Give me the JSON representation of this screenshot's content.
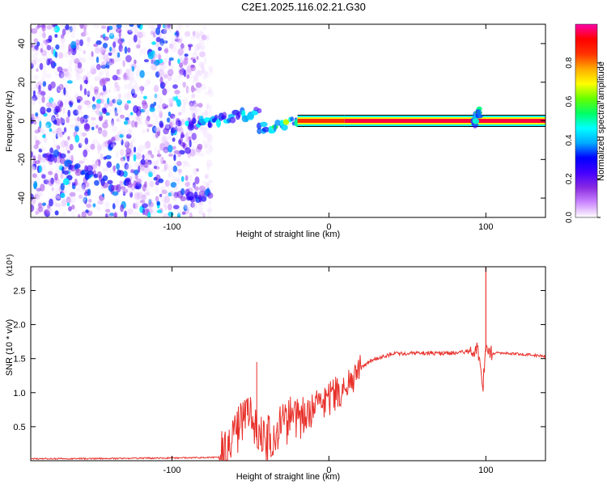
{
  "title": "C2E1.2025.116.02.21.G30",
  "chart_data": [
    {
      "type": "heatmap",
      "xlabel": "Height of straight line (km)",
      "ylabel": "Frequency (Hz)",
      "xlim": [
        -190,
        138
      ],
      "ylim": [
        -50,
        50
      ],
      "x_ticks": [
        "-100",
        "0",
        "100"
      ],
      "x_tick_values": [
        -100,
        0,
        100
      ],
      "y_ticks": [
        "40",
        "20",
        "0",
        "-20",
        "-40"
      ],
      "y_tick_values": [
        40,
        20,
        0,
        -20,
        -40
      ],
      "colorbar": {
        "label": "Normalized spectral amplitude",
        "range": [
          0,
          1
        ],
        "ticks": [
          "0.0",
          "0.2",
          "0.4",
          "0.6",
          "0.8"
        ],
        "tick_values": [
          0,
          0.2,
          0.4,
          0.6,
          0.8
        ],
        "colors": [
          "#ffffff",
          "#cc88ff",
          "#8a2be2",
          "#4400ff",
          "#0000ff",
          "#00aaff",
          "#00ffff",
          "#00ff66",
          "#66ff00",
          "#ffff00",
          "#ffaa00",
          "#ff3300",
          "#ff0000",
          "#ff00aa"
        ]
      },
      "features": [
        {
          "x": [
            -190,
            -75
          ],
          "y": [
            -50,
            50
          ],
          "value": 0.15
        },
        {
          "x": [
            -180,
            -135
          ],
          "y": [
            -16,
            -34
          ],
          "value": 0.3
        },
        {
          "x": [
            -95,
            -75
          ],
          "y": [
            -39,
            -38
          ],
          "value": 0.3
        },
        {
          "x": [
            -90,
            -45
          ],
          "y": [
            -2,
            4
          ],
          "value": 0.4
        },
        {
          "x": [
            -45,
            -20
          ],
          "y": [
            -5,
            0
          ],
          "value": 0.55
        },
        {
          "x": [
            -20,
            10
          ],
          "y": [
            0,
            0
          ],
          "value": 0.85
        },
        {
          "x": [
            10,
            138
          ],
          "y": [
            0,
            0
          ],
          "value": 0.95
        },
        {
          "x": [
            92,
            96
          ],
          "y": [
            -2,
            6
          ],
          "value": 0.5
        }
      ]
    },
    {
      "type": "line",
      "xlabel": "Height of straight line (km)",
      "ylabel": "SNR (10 * v/v)",
      "exponent_label": "(x10⁴)",
      "xlim": [
        -190,
        138
      ],
      "ylim": [
        0,
        2.85
      ],
      "x_ticks": [
        "-100",
        "0",
        "100"
      ],
      "x_tick_values": [
        -100,
        0,
        100
      ],
      "y_ticks": [
        "2.5",
        "2.0",
        "1.5",
        "1.0",
        "0.5"
      ],
      "y_tick_values": [
        2.5,
        2.0,
        1.5,
        1.0,
        0.5
      ],
      "color": "#e8302a",
      "series": [
        {
          "x": [
            -190,
            -150,
            -100,
            -70,
            -65,
            -60,
            -55,
            -50,
            -45,
            -40,
            -35,
            -30,
            -25,
            -20,
            -15,
            -10,
            -5,
            0,
            5,
            10,
            15,
            20,
            25,
            30,
            40,
            50,
            60,
            70,
            80,
            90,
            95,
            98,
            100,
            102,
            105,
            110,
            120,
            130,
            138
          ],
          "y": [
            0.03,
            0.03,
            0.04,
            0.05,
            0.15,
            0.4,
            0.55,
            0.65,
            0.5,
            0.3,
            0.4,
            0.5,
            0.6,
            0.6,
            0.7,
            0.75,
            0.85,
            0.9,
            1.0,
            1.1,
            1.2,
            1.35,
            1.45,
            1.5,
            1.57,
            1.58,
            1.58,
            1.58,
            1.59,
            1.6,
            1.62,
            1.0,
            1.75,
            1.6,
            1.58,
            1.58,
            1.57,
            1.55,
            1.53
          ]
        }
      ]
    }
  ]
}
